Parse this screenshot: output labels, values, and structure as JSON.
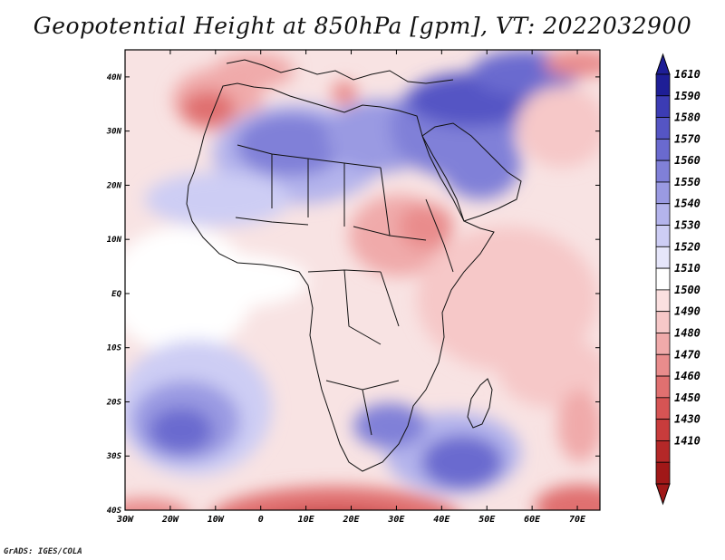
{
  "title": "Geopotential Height at 850hPa [gpm], VT: 2022032900",
  "footer": "GrADS: IGES/COLA",
  "map": {
    "variable": "Geopotential Height",
    "level": "850hPa",
    "units": "gpm",
    "valid_time": "2022032900",
    "region": "Africa",
    "lon_range": [
      -30,
      75
    ],
    "lat_range": [
      -40,
      45
    ],
    "lon_labels": [
      "30W",
      "20W",
      "10W",
      "0",
      "10E",
      "20E",
      "30E",
      "40E",
      "50E",
      "60E",
      "70E"
    ],
    "lat_labels": [
      "40N",
      "30N",
      "20N",
      "10N",
      "EQ",
      "10S",
      "20S",
      "30S",
      "40S"
    ]
  },
  "colorbar": {
    "labels": [
      "1610",
      "1590",
      "1580",
      "1570",
      "1560",
      "1550",
      "1540",
      "1530",
      "1520",
      "1510",
      "1500",
      "1490",
      "1480",
      "1470",
      "1460",
      "1450",
      "1430",
      "1410"
    ],
    "colors": [
      "#1e1e96",
      "#3c3cb4",
      "#5555c4",
      "#6a6acf",
      "#8080d8",
      "#9a9ae2",
      "#b4b4ec",
      "#cdcdf4",
      "#e6e6fa",
      "#ffffff",
      "#fbe0e0",
      "#f6c8c8",
      "#f0aaaa",
      "#e98c8c",
      "#e07070",
      "#d65454",
      "#c83c3c",
      "#b42828",
      "#a01818"
    ]
  }
}
